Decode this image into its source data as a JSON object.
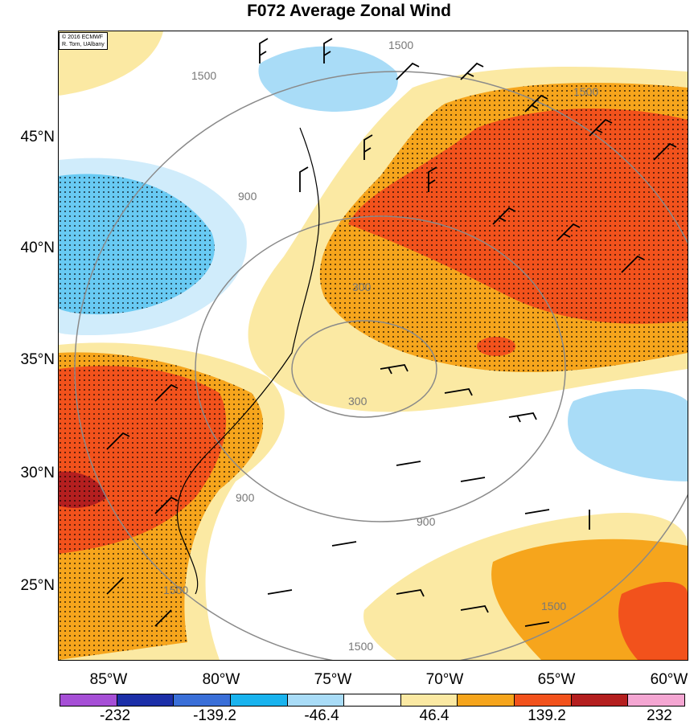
{
  "title": "F072 Average Zonal Wind",
  "credit": [
    "© 2016 ECMWF",
    "R. Torn, UAlbany"
  ],
  "lat_labels": [
    "45°N",
    "40°N",
    "35°N",
    "30°N",
    "25°N"
  ],
  "lon_labels": [
    "85°W",
    "80°W",
    "75°W",
    "70°W",
    "65°W",
    "60°W"
  ],
  "colorbar": {
    "ticks": [
      "-232",
      "-139.2",
      "-46.4",
      "46.4",
      "139.2",
      "232"
    ],
    "colors": [
      "#a64fd6",
      "#1c2fa8",
      "#3a6fd8",
      "#19b3ee",
      "#a9dcf7",
      "#ffffff",
      "#fbe9a3",
      "#f6a51c",
      "#f2521c",
      "#b41f1f",
      "#f4a6d2"
    ]
  },
  "contour_labels": [
    "300",
    "300",
    "900",
    "900",
    "900",
    "1500",
    "1500",
    "1500",
    "1500",
    "1500",
    "1500"
  ]
}
